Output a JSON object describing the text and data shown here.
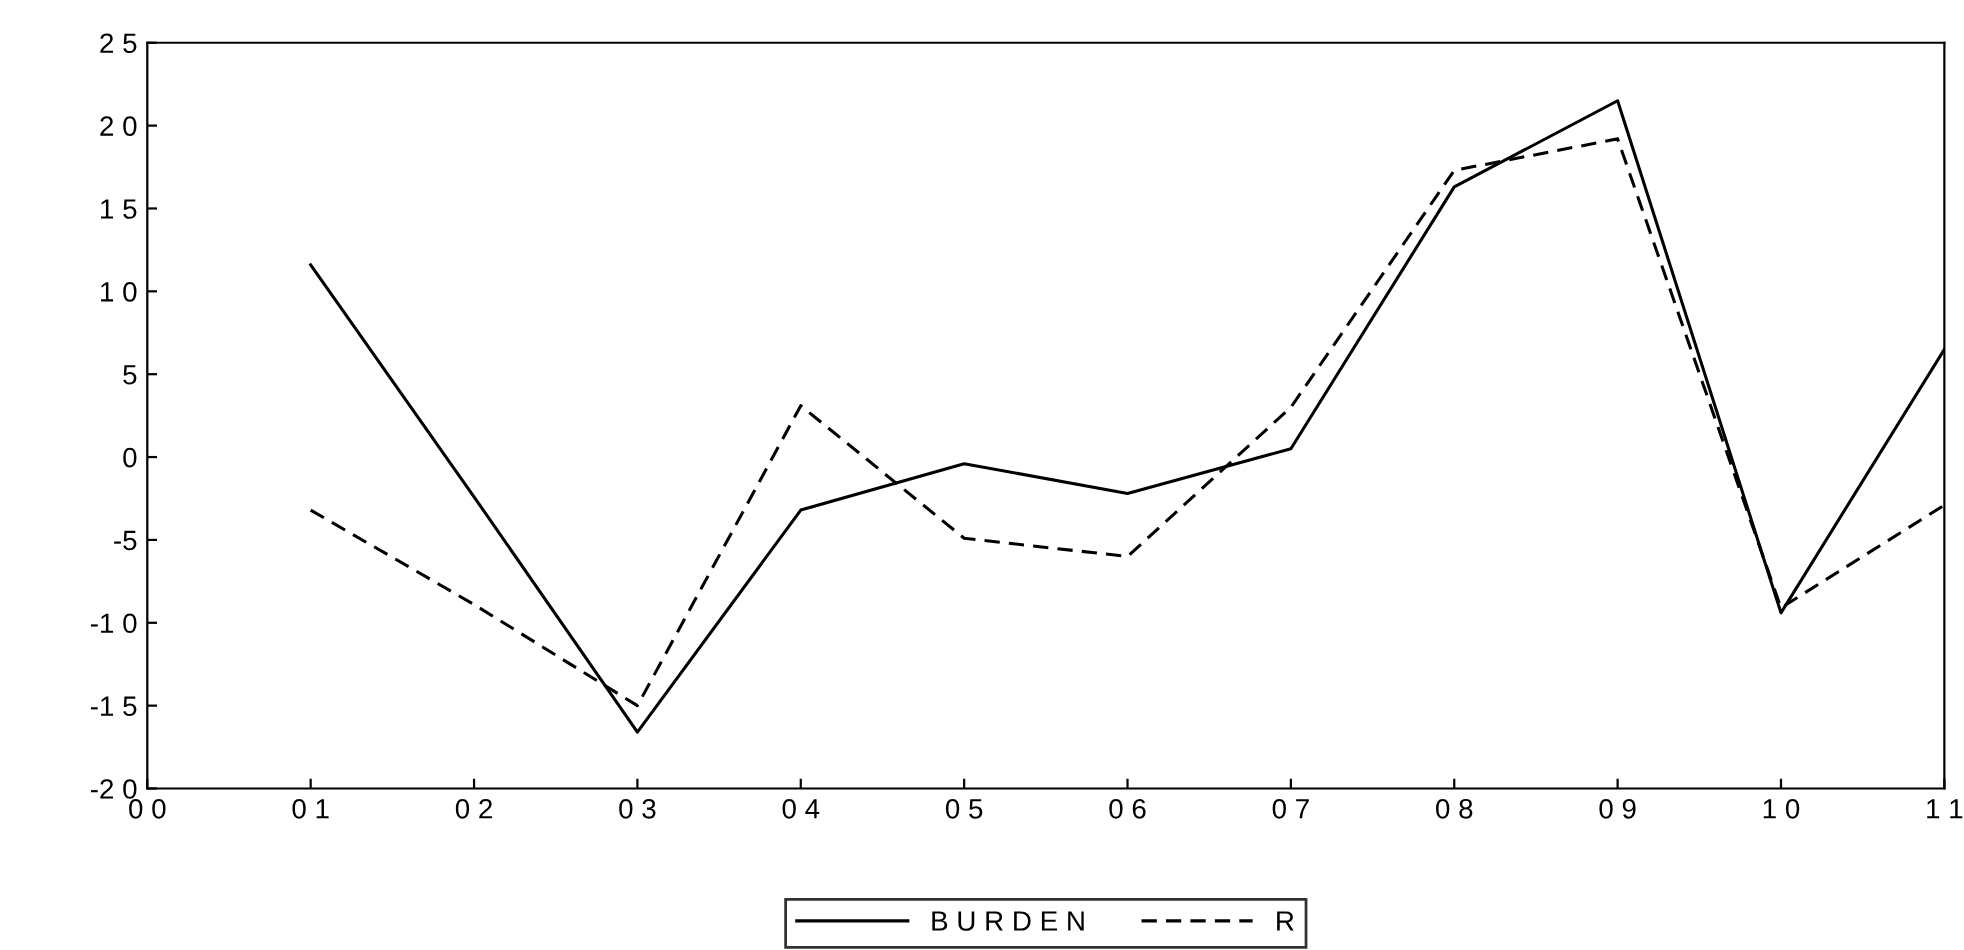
{
  "chart_data": {
    "type": "line",
    "categories": [
      "0 0",
      "0 1",
      "0 2",
      "0 3",
      "0 4",
      "0 5",
      "0 6",
      "0 7",
      "0 8",
      "0 9",
      "1 0",
      "1 1"
    ],
    "series": [
      {
        "name": "B U R D E N",
        "color": "#000000",
        "line_style": "solid",
        "values": [
          null,
          11.6,
          -2.4,
          -16.6,
          -3.2,
          -0.4,
          -2.2,
          0.5,
          16.3,
          21.5,
          -9.4,
          6.5
        ]
      },
      {
        "name": "R",
        "color": "#000000",
        "line_style": "dashed",
        "values": [
          null,
          -3.2,
          -8.9,
          -15.0,
          3.1,
          -4.9,
          -6.0,
          3.0,
          17.3,
          19.2,
          -9.1,
          -2.9
        ]
      }
    ],
    "ylim": [
      -20,
      25
    ],
    "yticks": [
      {
        "value": -20,
        "label": "-2 0"
      },
      {
        "value": -15,
        "label": "-1 5"
      },
      {
        "value": -10,
        "label": "-1 0"
      },
      {
        "value": -5,
        "label": "-5"
      },
      {
        "value": 0,
        "label": "0"
      },
      {
        "value": 5,
        "label": "5"
      },
      {
        "value": 10,
        "label": "1 0"
      },
      {
        "value": 15,
        "label": "1 5"
      },
      {
        "value": 20,
        "label": "2 0"
      },
      {
        "value": 25,
        "label": "2 5"
      }
    ],
    "grid": false,
    "legend": "bottom",
    "marker": "none"
  }
}
